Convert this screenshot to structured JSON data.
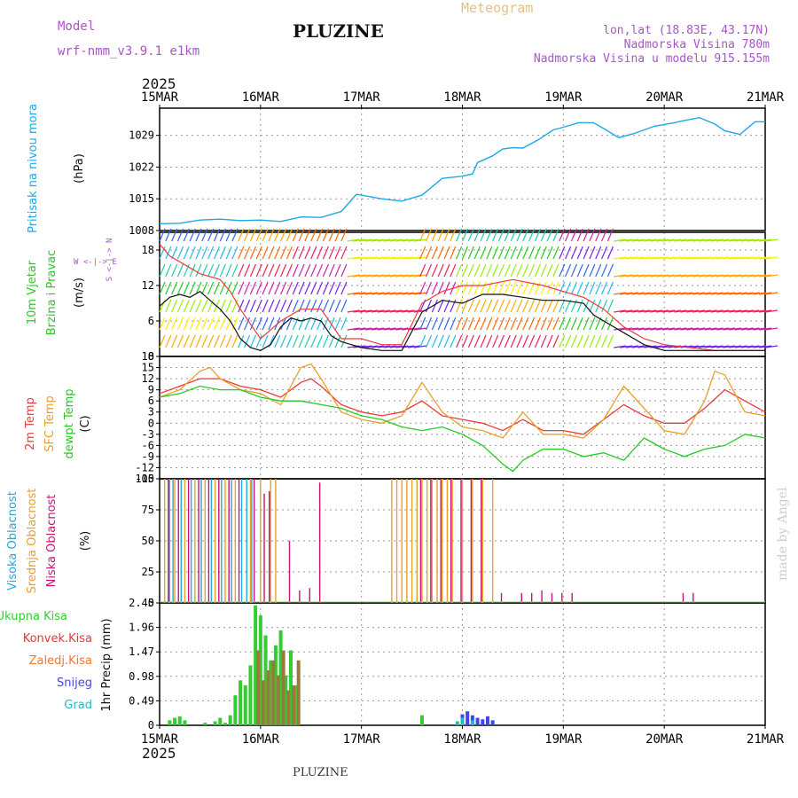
{
  "header": {
    "model_label": "Model",
    "model_name": "wrf-nmm_v3.9.1  e1km",
    "station": "PLUZINE",
    "meteogram": "Meteogram",
    "lonlat": "lon,lat (18.83E, 43.17N)",
    "elevation": "Nadmorska Visina 780m",
    "model_elevation": "Nadmorska Visina u modelu 915.155m",
    "year": "2025",
    "footer_station": "PLUZINE",
    "credit": "made by Angel"
  },
  "colors": {
    "pressure": "#1ea8e6",
    "temp2m": "#ee3a3a",
    "sfc": "#e8a02a",
    "dewpt": "#22cc22",
    "high_cloud": "#22aadd",
    "mid_cloud": "#e8a02a",
    "low_cloud": "#cc1177",
    "total_precip": "#33cc33",
    "conv_precip": "#ee3333",
    "frz_precip": "#ee7733",
    "snow": "#4444ee",
    "hail": "#22bbbb",
    "purple_text": "#a855c8"
  },
  "chart_data": [
    {
      "id": "pressure",
      "type": "line",
      "ylabel_left": "Pritisak na nivou mora",
      "ylabel_unit": "(hPa)",
      "yticks": [
        1008,
        1015,
        1022,
        1029
      ],
      "ylim": [
        1008,
        1035
      ],
      "xlim_days": [
        15,
        21
      ],
      "series": [
        {
          "x": [
            15.0,
            15.2,
            15.4,
            15.6,
            15.8,
            16.0,
            16.2,
            16.4,
            16.6,
            16.8,
            16.95,
            17.2,
            17.4,
            17.6,
            17.8,
            18.0,
            18.1,
            18.15,
            18.3,
            18.4,
            18.5,
            18.6,
            18.75,
            18.9,
            19.0,
            19.15,
            19.3,
            19.4,
            19.55,
            19.7,
            19.9,
            20.1,
            20.2,
            20.35,
            20.5,
            20.6,
            20.75,
            20.9,
            21.0
          ],
          "values": [
            1009.5,
            1009.6,
            1010.3,
            1010.5,
            1010.2,
            1010.3,
            1010.0,
            1011.0,
            1010.9,
            1012.2,
            1016.0,
            1015.0,
            1014.5,
            1015.8,
            1019.5,
            1020.0,
            1020.5,
            1023.0,
            1024.5,
            1026.0,
            1026.3,
            1026.2,
            1028.0,
            1030.2,
            1030.8,
            1031.8,
            1031.8,
            1030.5,
            1028.5,
            1029.4,
            1031.0,
            1031.8,
            1032.3,
            1032.9,
            1031.5,
            1030.0,
            1029.2,
            1032.0,
            1032.0
          ]
        }
      ]
    },
    {
      "id": "wind",
      "type": "line",
      "ylabel_left": "10m Vjetar",
      "ylabel_left2": "Brzina i Pravac",
      "ylabel_unit": "(m/s)",
      "compass": "W <-|-> E",
      "compass_ns": "S <-|-> N",
      "yticks": [
        0,
        6,
        12,
        18
      ],
      "ylim": [
        0,
        21
      ],
      "series": [
        {
          "name": "mean",
          "x": [
            15.0,
            15.1,
            15.2,
            15.3,
            15.4,
            15.5,
            15.6,
            15.7,
            15.8,
            15.9,
            16.0,
            16.1,
            16.2,
            16.3,
            16.4,
            16.5,
            16.6,
            16.7,
            16.8,
            16.9,
            17.0,
            17.2,
            17.4,
            17.6,
            17.8,
            18.0,
            18.2,
            18.4,
            18.6,
            18.8,
            19.0,
            19.2,
            19.3,
            19.4,
            19.6,
            19.8,
            20.0,
            20.2,
            20.4,
            20.6,
            20.8,
            21.0
          ],
          "values": [
            8.5,
            10.0,
            10.5,
            10.0,
            11.0,
            9.5,
            8.0,
            6.0,
            3.0,
            1.5,
            1.0,
            2.0,
            5.0,
            6.5,
            6.0,
            6.5,
            6.0,
            3.5,
            2.5,
            2.0,
            1.5,
            1.0,
            1.0,
            7.5,
            9.5,
            9.0,
            10.5,
            10.5,
            10.0,
            9.5,
            9.5,
            9.0,
            7.0,
            6.0,
            4.0,
            2.0,
            1.0,
            1.0,
            1.0,
            1.0,
            1.0,
            1.0
          ]
        },
        {
          "name": "gust",
          "x": [
            15.0,
            15.1,
            15.2,
            15.4,
            15.6,
            15.7,
            15.8,
            16.0,
            16.2,
            16.4,
            16.6,
            16.8,
            17.0,
            17.2,
            17.4,
            17.6,
            17.8,
            18.0,
            18.2,
            18.5,
            18.8,
            19.0,
            19.2,
            19.4,
            19.6,
            19.8,
            20.0,
            20.5,
            21.0
          ],
          "values": [
            19,
            17,
            16,
            14,
            13,
            11,
            8,
            3,
            6,
            8,
            8,
            3,
            3,
            2,
            2,
            9,
            11,
            12,
            12,
            13,
            12,
            11,
            10,
            8,
            5,
            3,
            2,
            1,
            1
          ]
        }
      ]
    },
    {
      "id": "temperature",
      "type": "line",
      "ylabel_left": "2m Temp",
      "ylabel_left2": "SFC Temp",
      "ylabel_left3": "dewpt Temp",
      "ylabel_unit": "(C)",
      "yticks": [
        -15,
        -12,
        -9,
        -6,
        -3,
        0,
        3,
        6,
        9,
        12,
        15,
        18
      ],
      "ylim": [
        -15,
        18
      ],
      "series": [
        {
          "name": "2m Temp",
          "x": [
            15.0,
            15.2,
            15.4,
            15.6,
            15.8,
            16.0,
            16.2,
            16.4,
            16.5,
            16.6,
            16.8,
            17.0,
            17.2,
            17.4,
            17.6,
            17.8,
            18.0,
            18.2,
            18.4,
            18.6,
            18.8,
            19.0,
            19.2,
            19.4,
            19.6,
            19.8,
            20.0,
            20.2,
            20.4,
            20.6,
            20.8,
            21.0
          ],
          "values": [
            8,
            10,
            12,
            12,
            10,
            9,
            7,
            11,
            12,
            10,
            5,
            3,
            2,
            3,
            6,
            2,
            1,
            0,
            -2,
            1,
            -2,
            -2,
            -3,
            1,
            5,
            2,
            0,
            0,
            4,
            9,
            6,
            3
          ]
        },
        {
          "name": "SFC Temp",
          "x": [
            15.0,
            15.2,
            15.4,
            15.5,
            15.6,
            15.8,
            16.0,
            16.2,
            16.4,
            16.5,
            16.6,
            16.8,
            17.0,
            17.2,
            17.4,
            17.6,
            17.8,
            18.0,
            18.2,
            18.4,
            18.6,
            18.8,
            19.0,
            19.2,
            19.4,
            19.6,
            19.8,
            20.0,
            20.2,
            20.4,
            20.5,
            20.6,
            20.8,
            21.0
          ],
          "values": [
            7,
            9,
            14,
            15,
            12,
            9,
            8,
            5,
            15,
            16,
            12,
            3,
            1,
            0,
            2,
            11,
            3,
            -1,
            -2,
            -4,
            3,
            -3,
            -3,
            -4,
            1,
            10,
            4,
            -2,
            -3,
            6,
            14,
            13,
            3,
            2
          ]
        },
        {
          "name": "dewpt Temp",
          "x": [
            15.0,
            15.2,
            15.4,
            15.6,
            15.8,
            16.0,
            16.2,
            16.4,
            16.6,
            16.8,
            17.0,
            17.2,
            17.4,
            17.6,
            17.8,
            18.0,
            18.2,
            18.4,
            18.5,
            18.6,
            18.8,
            19.0,
            19.2,
            19.4,
            19.6,
            19.8,
            20.0,
            20.2,
            20.4,
            20.6,
            20.8,
            21.0
          ],
          "values": [
            7,
            8,
            10,
            9,
            9,
            7,
            6,
            6,
            5,
            4,
            2,
            1,
            -1,
            -2,
            -1,
            -3,
            -6,
            -11,
            -13,
            -10,
            -7,
            -7,
            -9,
            -8,
            -10,
            -4,
            -7,
            -9,
            -7,
            -6,
            -3,
            -4
          ]
        }
      ]
    },
    {
      "id": "clouds",
      "type": "bar",
      "ylabel_left": "Visoka Oblacnost",
      "ylabel_left2": "Srednja Oblacnost",
      "ylabel_left3": "Niska Oblacnost",
      "ylabel_unit": "(%)",
      "yticks": [
        0,
        25,
        50,
        75,
        100
      ],
      "ylim": [
        0,
        100
      ],
      "high": [
        [
          15.08,
          100
        ],
        [
          15.12,
          100
        ],
        [
          15.2,
          100
        ],
        [
          15.3,
          100
        ],
        [
          15.4,
          100
        ],
        [
          15.5,
          100
        ],
        [
          15.6,
          100
        ],
        [
          15.7,
          100
        ],
        [
          15.8,
          100
        ],
        [
          15.85,
          100
        ],
        [
          15.9,
          100
        ]
      ],
      "mid": [
        [
          15.05,
          100
        ],
        [
          15.1,
          100
        ],
        [
          15.15,
          100
        ],
        [
          15.25,
          100
        ],
        [
          15.35,
          100
        ],
        [
          15.45,
          100
        ],
        [
          15.55,
          100
        ],
        [
          15.65,
          100
        ],
        [
          15.75,
          100
        ],
        [
          15.9,
          100
        ],
        [
          16.0,
          100
        ],
        [
          16.1,
          100
        ],
        [
          16.15,
          100
        ],
        [
          17.3,
          100
        ],
        [
          17.35,
          100
        ],
        [
          17.4,
          100
        ],
        [
          17.45,
          100
        ],
        [
          17.5,
          100
        ],
        [
          17.55,
          100
        ],
        [
          17.6,
          100
        ],
        [
          17.65,
          100
        ],
        [
          17.7,
          100
        ],
        [
          17.75,
          100
        ],
        [
          17.8,
          100
        ],
        [
          17.85,
          100
        ],
        [
          17.9,
          100
        ],
        [
          18.0,
          100
        ],
        [
          18.1,
          100
        ],
        [
          18.2,
          100
        ],
        [
          18.3,
          100
        ]
      ],
      "low": [
        [
          15.1,
          100
        ],
        [
          15.2,
          100
        ],
        [
          15.3,
          100
        ],
        [
          15.4,
          100
        ],
        [
          15.5,
          100
        ],
        [
          15.6,
          100
        ],
        [
          15.7,
          100
        ],
        [
          15.8,
          100
        ],
        [
          15.95,
          100
        ],
        [
          16.05,
          88
        ],
        [
          16.1,
          90
        ],
        [
          16.3,
          50
        ],
        [
          16.4,
          10
        ],
        [
          16.5,
          12
        ],
        [
          16.6,
          97
        ],
        [
          17.6,
          100
        ],
        [
          17.7,
          100
        ],
        [
          17.8,
          100
        ],
        [
          17.9,
          100
        ],
        [
          18.0,
          100
        ],
        [
          18.1,
          100
        ],
        [
          18.2,
          100
        ],
        [
          18.4,
          8
        ],
        [
          18.6,
          8
        ],
        [
          18.7,
          8
        ],
        [
          18.8,
          10
        ],
        [
          18.9,
          8
        ],
        [
          19.0,
          8
        ],
        [
          19.1,
          8
        ],
        [
          20.2,
          8
        ],
        [
          20.3,
          8
        ]
      ]
    },
    {
      "id": "precip",
      "type": "bar",
      "legend": [
        "Ukupna Kisa",
        "Konvek.Kisa",
        "Zaledj.Kisa",
        "Snijeg",
        "Grad"
      ],
      "ylabel_unit": "1hr Precip (mm)",
      "yticks": [
        0,
        0.49,
        0.98,
        1.47,
        1.96,
        2.45
      ],
      "ylim": [
        0,
        2.45
      ],
      "total": [
        [
          15.1,
          0.1
        ],
        [
          15.15,
          0.15
        ],
        [
          15.2,
          0.18
        ],
        [
          15.25,
          0.1
        ],
        [
          15.45,
          0.05
        ],
        [
          15.55,
          0.08
        ],
        [
          15.6,
          0.15
        ],
        [
          15.65,
          0.05
        ],
        [
          15.7,
          0.2
        ],
        [
          15.75,
          0.6
        ],
        [
          15.8,
          0.9
        ],
        [
          15.85,
          0.8
        ],
        [
          15.9,
          1.2
        ],
        [
          15.95,
          2.4
        ],
        [
          16.0,
          2.2
        ],
        [
          16.05,
          1.8
        ],
        [
          16.1,
          1.3
        ],
        [
          16.15,
          1.6
        ],
        [
          16.2,
          1.9
        ],
        [
          16.25,
          1.0
        ],
        [
          16.3,
          1.5
        ],
        [
          16.35,
          0.8
        ],
        [
          17.6,
          0.2
        ],
        [
          18.0,
          0.05
        ]
      ],
      "frz": [
        [
          15.95,
          1.5
        ],
        [
          16.0,
          0.9
        ],
        [
          16.05,
          1.1
        ],
        [
          16.1,
          1.3
        ],
        [
          16.15,
          1.0
        ],
        [
          16.2,
          1.5
        ],
        [
          16.25,
          0.7
        ],
        [
          16.3,
          0.8
        ],
        [
          16.35,
          1.3
        ]
      ],
      "snow": [
        [
          18.0,
          0.22
        ],
        [
          18.05,
          0.28
        ],
        [
          18.1,
          0.2
        ],
        [
          18.15,
          0.15
        ],
        [
          18.2,
          0.12
        ],
        [
          18.25,
          0.18
        ],
        [
          18.3,
          0.1
        ]
      ],
      "hail": [
        [
          17.95,
          0.08
        ],
        [
          18.0,
          0.15
        ],
        [
          18.1,
          0.1
        ]
      ]
    }
  ],
  "xaxis": {
    "labels": [
      "15MAR",
      "16MAR",
      "17MAR",
      "18MAR",
      "19MAR",
      "20MAR",
      "21MAR"
    ]
  }
}
